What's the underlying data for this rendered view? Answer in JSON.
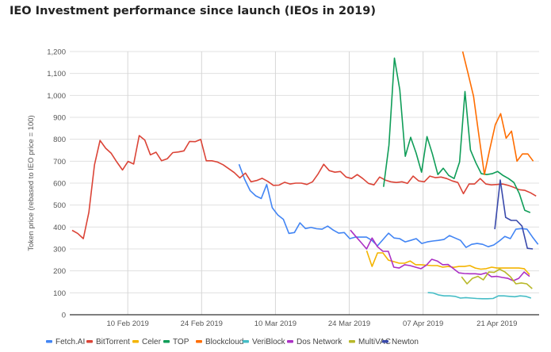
{
  "chart_data": {
    "type": "line",
    "title": "IEO Investment performance since launch (IEOs in 2019)",
    "xlabel": "",
    "ylabel": "Token price (rebased to IEO price = 100)",
    "x_unit": "days since 30 Jan 2019",
    "xlim": [
      0,
      89
    ],
    "ylim": [
      0,
      1200
    ],
    "y_ticks": [
      0,
      100,
      200,
      300,
      400,
      500,
      600,
      700,
      800,
      900,
      1000,
      1100,
      1200
    ],
    "y_tick_labels": [
      "0",
      "100",
      "200",
      "300",
      "400",
      "500",
      "600",
      "700",
      "800",
      "900",
      "1,000",
      "1,100",
      "1,200"
    ],
    "x_ticks": [
      11,
      25,
      39,
      53,
      67,
      81
    ],
    "x_tick_labels": [
      "10 Feb 2019",
      "24 Feb 2019",
      "10 Mar 2019",
      "24 Mar 2019",
      "07 Apr 2019",
      "21 Apr 2019"
    ],
    "grid": true,
    "legend_position": "bottom",
    "series": [
      {
        "name": "Fetch.AI",
        "color": "#4285f4",
        "start_day": 32.1,
        "step_days": 1.05,
        "values": [
          686,
          618,
          566,
          542,
          530,
          594,
          488,
          455,
          435,
          371,
          375,
          419,
          393,
          398,
          392,
          390,
          404,
          386,
          372,
          375,
          347,
          354,
          354,
          354,
          339,
          314,
          343,
          372,
          350,
          347,
          332,
          339,
          347,
          325,
          332,
          336,
          339,
          343,
          361,
          350,
          339,
          307,
          321,
          325,
          321,
          310,
          318,
          336,
          357,
          347,
          390,
          393,
          390,
          354,
          321
        ]
      },
      {
        "name": "BitTorrent",
        "color": "#db4437",
        "start_day": 0.45,
        "step_days": 1.06,
        "values": [
          385,
          371,
          347,
          467,
          684,
          795,
          759,
          736,
          696,
          660,
          699,
          687,
          817,
          796,
          729,
          741,
          702,
          711,
          739,
          742,
          747,
          790,
          789,
          799,
          702,
          702,
          696,
          684,
          666,
          648,
          624,
          646,
          606,
          612,
          622,
          608,
          590,
          591,
          604,
          596,
          600,
          600,
          594,
          606,
          642,
          686,
          657,
          650,
          653,
          628,
          621,
          639,
          621,
          599,
          592,
          628,
          614,
          606,
          603,
          606,
          599,
          632,
          610,
          606,
          632,
          625,
          628,
          621,
          610,
          603,
          552,
          596,
          596,
          621,
          596,
          592,
          594,
          596,
          590,
          581,
          570,
          567,
          556,
          541
        ]
      },
      {
        "name": "Celer",
        "color": "#f4b400",
        "start_day": 56.3,
        "step_days": 1.03,
        "values": [
          292,
          220,
          282,
          282,
          249,
          242,
          235,
          235,
          245,
          228,
          228,
          226,
          224,
          224,
          217,
          220,
          216,
          220,
          220,
          224,
          213,
          208,
          210,
          217,
          213,
          213,
          213,
          213,
          213,
          210,
          183
        ]
      },
      {
        "name": "TOP",
        "color": "#0f9d58",
        "start_day": 59.5,
        "step_days": 1.03,
        "values": [
          583,
          773,
          1170,
          1025,
          722,
          809,
          737,
          650,
          812,
          733,
          639,
          668,
          635,
          621,
          697,
          1018,
          751,
          693,
          643,
          639,
          643,
          653,
          635,
          621,
          603,
          552,
          476,
          466
        ]
      },
      {
        "name": "Blockcloud",
        "color": "#ff6d00",
        "start_day": 74.5,
        "step_days": 1.03,
        "values": [
          1202,
          1100,
          996,
          816,
          639,
          755,
          866,
          917,
          805,
          837,
          700,
          733,
          733,
          700
        ]
      },
      {
        "name": "VeriBlock",
        "color": "#46bdc6",
        "start_day": 67.9,
        "step_days": 1.03,
        "values": [
          101,
          99,
          90,
          86,
          86,
          84,
          76,
          78,
          76,
          74,
          73,
          73,
          74,
          86,
          86,
          84,
          82,
          86,
          84,
          76
        ]
      },
      {
        "name": "Dos Network",
        "color": "#ab30c4",
        "start_day": 53.2,
        "step_days": 1.03,
        "values": [
          386,
          357,
          329,
          300,
          350,
          310,
          289,
          289,
          217,
          213,
          228,
          224,
          217,
          210,
          226,
          253,
          245,
          228,
          229,
          210,
          191,
          188,
          187,
          187,
          184,
          191,
          173,
          175,
          170,
          166,
          155,
          166,
          195,
          175
        ]
      },
      {
        "name": "MultiVAC",
        "color": "#b8b82a",
        "start_day": 74.3,
        "step_days": 1.03,
        "values": [
          173,
          141,
          166,
          175,
          159,
          195,
          193,
          208,
          195,
          173,
          141,
          145,
          141,
          119
        ]
      },
      {
        "name": "Newton",
        "color": "#3949ab",
        "start_day": 80.6,
        "step_days": 1.03,
        "values": [
          390,
          614,
          444,
          430,
          430,
          404,
          303,
          300
        ]
      }
    ]
  }
}
